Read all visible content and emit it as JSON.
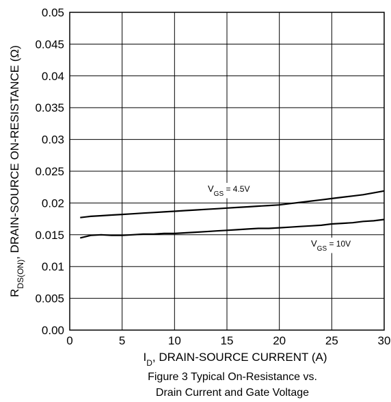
{
  "chart_data": {
    "type": "line",
    "title": "",
    "xlabel": {
      "main": "I",
      "sub": "D",
      "rest": ", DRAIN-SOURCE CURRENT (A)"
    },
    "ylabel": {
      "main": "R",
      "sub": "DS(ON)",
      "rest": ", DRAIN-SOURCE ON-RESISTANCE (Ω)"
    },
    "xlim": [
      0,
      30
    ],
    "ylim": [
      0,
      0.05
    ],
    "xticks": [
      "0",
      "5",
      "10",
      "15",
      "20",
      "25",
      "30"
    ],
    "yticks": [
      "0.00",
      "0.005",
      "0.01",
      "0.015",
      "0.02",
      "0.025",
      "0.03",
      "0.035",
      "0.04",
      "0.045",
      "0.05"
    ],
    "grid": true,
    "series": [
      {
        "name": {
          "main": "V",
          "sub": "GS",
          "rest": " = 4.5V"
        },
        "x": [
          1,
          2,
          3,
          4,
          5,
          6,
          7,
          8,
          9,
          10,
          11,
          12,
          13,
          14,
          15,
          16,
          17,
          18,
          19,
          20,
          21,
          22,
          23,
          24,
          25,
          26,
          27,
          28,
          29,
          30
        ],
        "y": [
          0.0177,
          0.0179,
          0.018,
          0.0181,
          0.0182,
          0.0183,
          0.0184,
          0.0185,
          0.0186,
          0.0187,
          0.0188,
          0.0189,
          0.019,
          0.0191,
          0.0192,
          0.0193,
          0.0194,
          0.0195,
          0.0196,
          0.0197,
          0.0199,
          0.0201,
          0.0203,
          0.0205,
          0.0207,
          0.0209,
          0.0211,
          0.0213,
          0.0216,
          0.0219
        ]
      },
      {
        "name": {
          "main": "V",
          "sub": "GS",
          "rest": " = 10V"
        },
        "x": [
          1,
          2,
          3,
          4,
          5,
          6,
          7,
          8,
          9,
          10,
          11,
          12,
          13,
          14,
          15,
          16,
          17,
          18,
          19,
          20,
          21,
          22,
          23,
          24,
          25,
          26,
          27,
          28,
          29,
          30
        ],
        "y": [
          0.0145,
          0.0149,
          0.015,
          0.0149,
          0.0149,
          0.015,
          0.0151,
          0.0151,
          0.0152,
          0.0152,
          0.0153,
          0.0154,
          0.0155,
          0.0156,
          0.0157,
          0.0158,
          0.0159,
          0.016,
          0.016,
          0.0161,
          0.0162,
          0.0163,
          0.0164,
          0.0165,
          0.0167,
          0.0168,
          0.0169,
          0.0171,
          0.0172,
          0.0174
        ]
      }
    ],
    "caption": [
      "Figure 3  Typical On-Resistance vs.",
      "Drain Current and Gate Voltage"
    ],
    "colors": {
      "line": "#000000",
      "grid": "#000000",
      "background": "#ffffff"
    }
  }
}
